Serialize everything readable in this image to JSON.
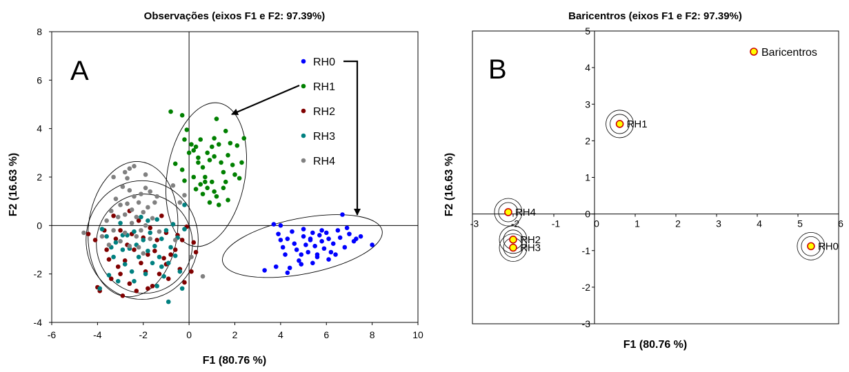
{
  "chart_data": [
    {
      "type": "scatter",
      "title": "Observações (eixos F1 e F2: 97.39%)",
      "xlabel": "F1 (80.76 %)",
      "ylabel": "F2 (16.63 %)",
      "panel_label": "A",
      "xlim": [
        -6,
        10
      ],
      "ylim": [
        -4,
        8
      ],
      "xticks": [
        "-6",
        "-4",
        "-2",
        "0",
        "2",
        "4",
        "6",
        "8",
        "10"
      ],
      "yticks": [
        "-4",
        "-2",
        "0",
        "2",
        "4",
        "6",
        "8"
      ],
      "legend_position": "top-right",
      "series": [
        {
          "name": "RH0",
          "color": "#0000ff",
          "ellipse": {
            "cx": 4.95,
            "cy": -0.85,
            "rx": 3.55,
            "ry": 1.15,
            "angle_deg": 11
          },
          "points": [
            [
              3.7,
              0.05
            ],
            [
              3.9,
              -0.35
            ],
            [
              4.0,
              -0.6
            ],
            [
              4.1,
              -0.9
            ],
            [
              4.2,
              -1.2
            ],
            [
              4.3,
              -0.55
            ],
            [
              4.5,
              -0.25
            ],
            [
              4.6,
              -0.75
            ],
            [
              4.7,
              -1.0
            ],
            [
              4.8,
              -1.45
            ],
            [
              5.0,
              -0.15
            ],
            [
              5.0,
              -0.45
            ],
            [
              5.1,
              -0.8
            ],
            [
              5.2,
              -1.1
            ],
            [
              5.3,
              -0.55
            ],
            [
              5.4,
              -0.3
            ],
            [
              5.5,
              -0.85
            ],
            [
              5.6,
              -1.2
            ],
            [
              5.7,
              -0.4
            ],
            [
              5.8,
              -0.65
            ],
            [
              5.9,
              -0.95
            ],
            [
              6.0,
              -0.3
            ],
            [
              6.1,
              -0.55
            ],
            [
              6.2,
              -1.1
            ],
            [
              6.3,
              -0.75
            ],
            [
              6.5,
              -0.2
            ],
            [
              6.6,
              -0.5
            ],
            [
              6.7,
              0.45
            ],
            [
              6.8,
              -0.9
            ],
            [
              7.0,
              -0.35
            ],
            [
              7.2,
              -0.65
            ],
            [
              7.5,
              -0.45
            ],
            [
              8.0,
              -0.8
            ],
            [
              3.3,
              -1.85
            ],
            [
              3.8,
              -1.7
            ],
            [
              4.3,
              -1.95
            ],
            [
              4.4,
              -1.75
            ],
            [
              4.9,
              -1.6
            ],
            [
              5.4,
              -1.55
            ],
            [
              5.6,
              -1.3
            ],
            [
              6.1,
              -1.4
            ],
            [
              6.4,
              -1.2
            ],
            [
              7.3,
              -0.55
            ],
            [
              4.9,
              -1.2
            ],
            [
              5.3,
              -0.6
            ],
            [
              5.8,
              -0.2
            ],
            [
              4.0,
              0.0
            ],
            [
              6.9,
              -0.1
            ]
          ]
        },
        {
          "name": "RH1",
          "color": "#008000",
          "ellipse": {
            "cx": 0.75,
            "cy": 2.1,
            "rx": 1.7,
            "ry": 3.0,
            "angle_deg": -10
          },
          "points": [
            [
              -0.8,
              4.7
            ],
            [
              -0.3,
              4.55
            ],
            [
              -0.2,
              3.55
            ],
            [
              -0.1,
              3.95
            ],
            [
              0.1,
              3.35
            ],
            [
              0.2,
              3.1
            ],
            [
              0.3,
              3.25
            ],
            [
              0.4,
              2.8
            ],
            [
              0.5,
              3.55
            ],
            [
              0.6,
              2.4
            ],
            [
              0.7,
              2.0
            ],
            [
              0.8,
              3.0
            ],
            [
              0.9,
              2.7
            ],
            [
              1.0,
              3.25
            ],
            [
              1.1,
              3.6
            ],
            [
              1.2,
              4.4
            ],
            [
              1.3,
              3.35
            ],
            [
              1.4,
              2.6
            ],
            [
              1.5,
              2.2
            ],
            [
              1.6,
              3.9
            ],
            [
              1.7,
              2.9
            ],
            [
              1.8,
              3.4
            ],
            [
              1.9,
              2.5
            ],
            [
              2.0,
              2.1
            ],
            [
              2.2,
              1.95
            ],
            [
              2.3,
              2.6
            ],
            [
              2.4,
              3.6
            ],
            [
              0.0,
              3.0
            ],
            [
              0.2,
              2.0
            ],
            [
              0.5,
              1.7
            ],
            [
              0.6,
              1.3
            ],
            [
              0.8,
              1.55
            ],
            [
              1.0,
              1.8
            ],
            [
              1.2,
              1.2
            ],
            [
              1.3,
              0.85
            ],
            [
              1.5,
              1.55
            ],
            [
              1.7,
              1.05
            ],
            [
              0.3,
              1.5
            ],
            [
              -0.6,
              2.55
            ],
            [
              -0.3,
              2.3
            ],
            [
              -0.2,
              1.85
            ],
            [
              1.1,
              1.4
            ],
            [
              0.9,
              0.95
            ],
            [
              0.4,
              2.6
            ],
            [
              1.6,
              1.8
            ],
            [
              2.1,
              3.3
            ],
            [
              1.1,
              2.85
            ],
            [
              0.7,
              1.8
            ]
          ]
        },
        {
          "name": "RH2",
          "color": "#800000",
          "ellipse": {
            "cx": -2.05,
            "cy": -0.6,
            "rx": 2.45,
            "ry": 2.45,
            "angle_deg": 0
          },
          "points": [
            [
              -4.4,
              -0.35
            ],
            [
              -4.1,
              -0.6
            ],
            [
              -4.0,
              -2.55
            ],
            [
              -3.9,
              -2.7
            ],
            [
              -3.7,
              -0.2
            ],
            [
              -3.6,
              -1.0
            ],
            [
              -3.5,
              -1.4
            ],
            [
              -3.4,
              -2.2
            ],
            [
              -3.2,
              -0.55
            ],
            [
              -3.1,
              -1.7
            ],
            [
              -3.0,
              -0.2
            ],
            [
              -3.0,
              -2.0
            ],
            [
              -2.8,
              -1.45
            ],
            [
              -2.7,
              -0.8
            ],
            [
              -2.6,
              -2.4
            ],
            [
              -2.5,
              -0.35
            ],
            [
              -2.4,
              -1.0
            ],
            [
              -2.3,
              -2.7
            ],
            [
              -2.2,
              0.2
            ],
            [
              -2.1,
              -1.55
            ],
            [
              -2.0,
              -0.5
            ],
            [
              -1.9,
              -1.9
            ],
            [
              -1.8,
              -1.2
            ],
            [
              -1.7,
              -0.1
            ],
            [
              -1.6,
              -2.5
            ],
            [
              -1.5,
              -1.05
            ],
            [
              -1.4,
              -0.6
            ],
            [
              -1.3,
              -2.0
            ],
            [
              -1.2,
              0.4
            ],
            [
              -1.1,
              -1.35
            ],
            [
              -1.0,
              -0.3
            ],
            [
              -0.9,
              -2.2
            ],
            [
              -0.8,
              -1.2
            ],
            [
              -0.7,
              0.05
            ],
            [
              -0.6,
              -1.0
            ],
            [
              -0.5,
              -0.4
            ],
            [
              -0.4,
              -1.8
            ],
            [
              -0.3,
              -0.6
            ],
            [
              -0.2,
              -2.35
            ],
            [
              -0.1,
              -0.05
            ],
            [
              0.2,
              -0.7
            ],
            [
              0.3,
              -1.1
            ],
            [
              -3.3,
              0.4
            ],
            [
              -2.9,
              -2.9
            ],
            [
              -1.8,
              -2.6
            ],
            [
              -1.0,
              -1.6
            ],
            [
              0.1,
              -1.9
            ],
            [
              -2.6,
              0.6
            ]
          ]
        },
        {
          "name": "RH3",
          "color": "#008080",
          "ellipse": {
            "cx": -1.95,
            "cy": -0.75,
            "rx": 2.1,
            "ry": 2.05,
            "angle_deg": 0
          },
          "points": [
            [
              -3.8,
              -0.15
            ],
            [
              -3.6,
              -0.45
            ],
            [
              -3.5,
              -2.05
            ],
            [
              -3.4,
              -0.9
            ],
            [
              -3.3,
              -1.3
            ],
            [
              -3.2,
              -0.7
            ],
            [
              -3.1,
              -2.3
            ],
            [
              -3.0,
              0.1
            ],
            [
              -2.9,
              -1.0
            ],
            [
              -2.8,
              -1.6
            ],
            [
              -2.7,
              -0.4
            ],
            [
              -2.6,
              -0.95
            ],
            [
              -2.5,
              -1.9
            ],
            [
              -2.4,
              -0.25
            ],
            [
              -2.3,
              -0.8
            ],
            [
              -2.2,
              -1.3
            ],
            [
              -2.1,
              0.35
            ],
            [
              -2.0,
              -0.6
            ],
            [
              -1.9,
              -2.0
            ],
            [
              -1.8,
              -1.05
            ],
            [
              -1.7,
              -0.3
            ],
            [
              -1.6,
              -1.55
            ],
            [
              -1.5,
              -0.85
            ],
            [
              -1.4,
              0.25
            ],
            [
              -1.3,
              -1.3
            ],
            [
              -1.2,
              -0.55
            ],
            [
              -1.1,
              -2.1
            ],
            [
              -1.0,
              -0.2
            ],
            [
              -0.9,
              -1.55
            ],
            [
              -0.8,
              -0.9
            ],
            [
              -0.7,
              0.05
            ],
            [
              -0.6,
              -1.25
            ],
            [
              -0.5,
              -0.5
            ],
            [
              -0.4,
              -1.9
            ],
            [
              -0.3,
              -2.6
            ],
            [
              -0.2,
              -0.15
            ],
            [
              -0.9,
              -3.15
            ],
            [
              -3.9,
              -2.6
            ],
            [
              -1.4,
              -2.5
            ],
            [
              -2.4,
              -2.3
            ],
            [
              -0.2,
              0.85
            ],
            [
              -1.8,
              0.2
            ],
            [
              -2.9,
              -0.4
            ],
            [
              -1.2,
              -1.7
            ]
          ]
        },
        {
          "name": "RH4",
          "color": "#808080",
          "ellipse": {
            "cx": -2.45,
            "cy": -0.15,
            "rx": 1.95,
            "ry": 2.8,
            "angle_deg": -6
          },
          "points": [
            [
              -4.6,
              -0.3
            ],
            [
              -3.8,
              -0.45
            ],
            [
              -3.6,
              0.2
            ],
            [
              -3.4,
              0.6
            ],
            [
              -3.3,
              -0.2
            ],
            [
              -3.2,
              1.1
            ],
            [
              -3.1,
              0.35
            ],
            [
              -3.0,
              0.85
            ],
            [
              -3.0,
              -0.65
            ],
            [
              -2.9,
              1.6
            ],
            [
              -2.8,
              0.45
            ],
            [
              -2.8,
              -0.3
            ],
            [
              -2.7,
              0.9
            ],
            [
              -2.6,
              1.45
            ],
            [
              -2.6,
              -0.85
            ],
            [
              -2.5,
              0.1
            ],
            [
              -2.5,
              0.65
            ],
            [
              -2.4,
              1.2
            ],
            [
              -2.3,
              -0.45
            ],
            [
              -2.3,
              0.35
            ],
            [
              -2.2,
              0.95
            ],
            [
              -2.1,
              1.3
            ],
            [
              -2.1,
              -0.2
            ],
            [
              -2.0,
              0.55
            ],
            [
              -1.9,
              1.55
            ],
            [
              -1.9,
              0.0
            ],
            [
              -1.8,
              0.75
            ],
            [
              -1.7,
              1.4
            ],
            [
              -1.7,
              -0.55
            ],
            [
              -1.6,
              0.3
            ],
            [
              -1.5,
              0.95
            ],
            [
              -1.4,
              1.2
            ],
            [
              -2.4,
              2.45
            ],
            [
              -2.6,
              2.35
            ],
            [
              -2.8,
              2.2
            ],
            [
              -1.3,
              -0.25
            ],
            [
              -0.4,
              0.95
            ],
            [
              -0.2,
              1.25
            ],
            [
              -0.7,
              1.65
            ],
            [
              -3.5,
              -0.8
            ],
            [
              -2.2,
              -0.9
            ],
            [
              -2.0,
              -1.15
            ],
            [
              -0.6,
              -0.6
            ],
            [
              0.1,
              -1.3
            ],
            [
              -2.7,
              1.95
            ],
            [
              -1.9,
              2.1
            ],
            [
              -3.3,
              2.0
            ],
            [
              0.6,
              -2.1
            ]
          ]
        }
      ],
      "annotations": [
        {
          "type": "arrow",
          "from_series": "RH1",
          "to": "ellipse RH1"
        },
        {
          "type": "arrow",
          "from_series": "RH0",
          "to": "ellipse RH0"
        }
      ]
    },
    {
      "type": "scatter",
      "title": "Baricentros (eixos F1 e F2: 97.39%)",
      "xlabel": "F1 (80.76 %)",
      "ylabel": "F2 (16.63 %)",
      "panel_label": "B",
      "xlim": [
        -3,
        6
      ],
      "ylim": [
        -3,
        5
      ],
      "xticks": [
        "-3",
        "-2",
        "-1",
        "0",
        "1",
        "2",
        "3",
        "4",
        "5",
        "6"
      ],
      "yticks": [
        "-3",
        "-2",
        "-1",
        "0",
        "1",
        "2",
        "3",
        "4",
        "5"
      ],
      "legend_position": "top-right",
      "legend": [
        "Baricentros"
      ],
      "marker_fill": "#ffff00",
      "marker_edge": "#cc0000",
      "points": [
        {
          "label": "RH0",
          "x": 5.32,
          "y": -0.88
        },
        {
          "label": "RH1",
          "x": 0.62,
          "y": 2.46
        },
        {
          "label": "RH2",
          "x": -2.0,
          "y": -0.7
        },
        {
          "label": "RH3",
          "x": -2.0,
          "y": -0.92
        },
        {
          "label": "RH4",
          "x": -2.12,
          "y": 0.05
        }
      ]
    }
  ]
}
